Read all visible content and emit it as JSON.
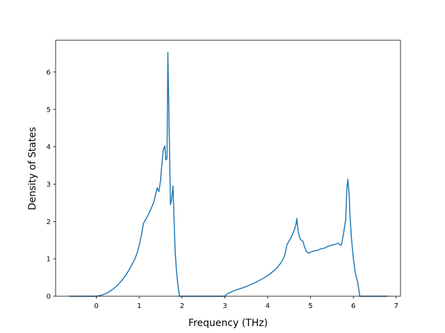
{
  "chart_data": {
    "type": "line",
    "title": "",
    "xlabel": "Frequency (THz)",
    "ylabel": "Density of States",
    "xlim": [
      -0.95,
      7.1
    ],
    "ylim": [
      0,
      6.85
    ],
    "xticks": [
      0,
      1,
      2,
      3,
      4,
      5,
      6,
      7
    ],
    "yticks": [
      0,
      1,
      2,
      3,
      4,
      5,
      6
    ],
    "grid": false,
    "legend": "none",
    "series": [
      {
        "color": "#1f77b4",
        "x": [
          -0.62,
          -0.3,
          0.0,
          0.1,
          0.2,
          0.3,
          0.4,
          0.5,
          0.6,
          0.7,
          0.8,
          0.9,
          0.95,
          1.0,
          1.05,
          1.1,
          1.15,
          1.2,
          1.25,
          1.3,
          1.35,
          1.38,
          1.42,
          1.46,
          1.5,
          1.52,
          1.56,
          1.58,
          1.6,
          1.62,
          1.65,
          1.67,
          1.7,
          1.73,
          1.76,
          1.79,
          1.81,
          1.84,
          1.87,
          1.9,
          1.94,
          1.98,
          2.0,
          2.5,
          3.0,
          3.05,
          3.1,
          3.2,
          3.3,
          3.4,
          3.5,
          3.6,
          3.7,
          3.8,
          3.9,
          4.0,
          4.1,
          4.2,
          4.3,
          4.35,
          4.4,
          4.45,
          4.5,
          4.55,
          4.6,
          4.63,
          4.66,
          4.68,
          4.7,
          4.72,
          4.75,
          4.78,
          4.82,
          4.86,
          4.9,
          4.95,
          5.0,
          5.05,
          5.1,
          5.15,
          5.2,
          5.25,
          5.3,
          5.35,
          5.4,
          5.45,
          5.5,
          5.55,
          5.6,
          5.65,
          5.7,
          5.72,
          5.75,
          5.78,
          5.82,
          5.85,
          5.87,
          5.88,
          5.9,
          5.92,
          5.95,
          6.0,
          6.05,
          6.1,
          6.15,
          6.5,
          6.78
        ],
        "y": [
          0,
          0,
          0.0,
          0.02,
          0.06,
          0.12,
          0.2,
          0.3,
          0.43,
          0.58,
          0.78,
          1.0,
          1.15,
          1.35,
          1.62,
          1.95,
          2.05,
          2.15,
          2.27,
          2.4,
          2.55,
          2.7,
          2.9,
          2.8,
          3.1,
          3.4,
          3.9,
          3.97,
          4.02,
          3.65,
          3.68,
          6.52,
          4.5,
          2.45,
          2.6,
          2.95,
          2.2,
          1.2,
          0.7,
          0.35,
          0.0,
          0.0,
          0.0,
          0.0,
          0.0,
          0.06,
          0.09,
          0.14,
          0.18,
          0.22,
          0.26,
          0.31,
          0.36,
          0.42,
          0.48,
          0.55,
          0.64,
          0.74,
          0.88,
          0.97,
          1.1,
          1.38,
          1.48,
          1.58,
          1.72,
          1.8,
          1.92,
          2.08,
          1.85,
          1.68,
          1.56,
          1.5,
          1.48,
          1.32,
          1.2,
          1.15,
          1.18,
          1.2,
          1.22,
          1.22,
          1.25,
          1.27,
          1.28,
          1.3,
          1.33,
          1.35,
          1.37,
          1.38,
          1.4,
          1.42,
          1.36,
          1.38,
          1.55,
          1.75,
          2.05,
          2.9,
          3.13,
          3.0,
          2.75,
          2.2,
          1.62,
          1.0,
          0.6,
          0.38,
          0.0,
          0.0,
          0.0
        ]
      }
    ]
  }
}
